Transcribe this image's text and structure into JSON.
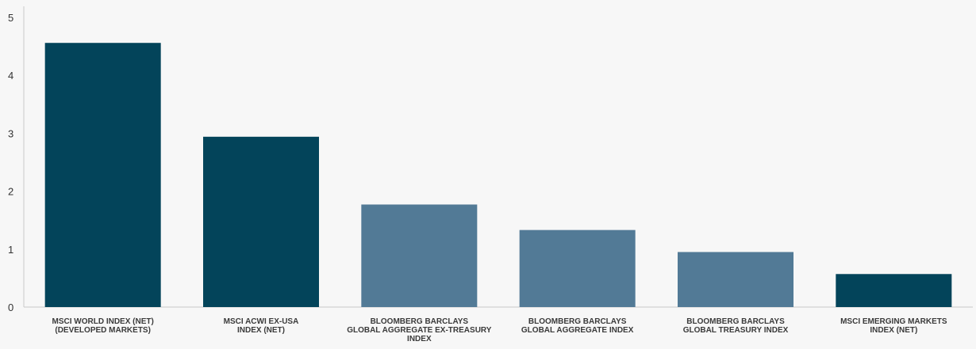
{
  "chart_data": {
    "type": "bar",
    "title": "",
    "xlabel": "",
    "ylabel": "",
    "ylim": [
      0,
      5
    ],
    "yticks": [
      0,
      1,
      2,
      3,
      4,
      5
    ],
    "grid": false,
    "categories": [
      [
        "MSCI WORLD INDEX (NET)",
        "(DEVELOPED MARKETS)"
      ],
      [
        "MSCI ACWI EX-USA",
        "INDEX (NET)"
      ],
      [
        "BLOOMBERG BARCLAYS",
        "GLOBAL AGGREGATE EX-TREASURY",
        "INDEX"
      ],
      [
        "BLOOMBERG BARCLAYS",
        "GLOBAL AGGREGATE INDEX"
      ],
      [
        "BLOOMBERG BARCLAYS",
        "GLOBAL TREASURY INDEX"
      ],
      [
        "MSCI EMERGING MARKETS",
        "INDEX (NET)"
      ]
    ],
    "values": [
      4.56,
      2.94,
      1.77,
      1.33,
      0.95,
      0.57
    ],
    "bar_colors": [
      "#03445a",
      "#03445a",
      "#527a96",
      "#527a96",
      "#527a96",
      "#03445a"
    ]
  }
}
